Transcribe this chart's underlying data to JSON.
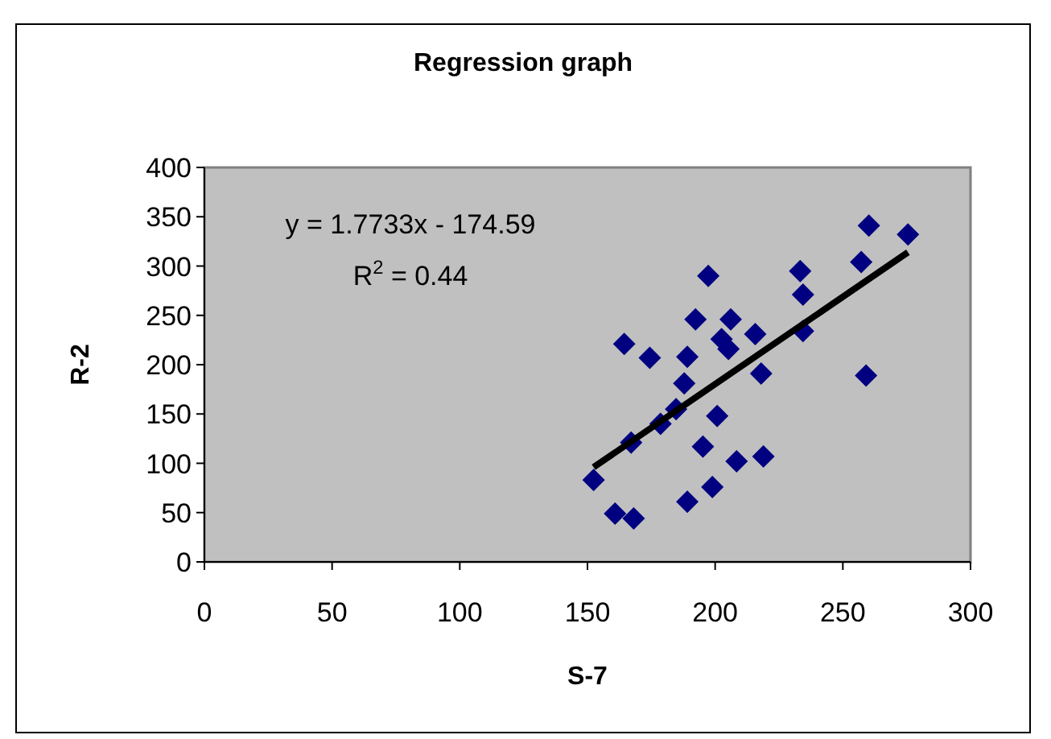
{
  "chart_data": {
    "type": "scatter",
    "title": "Regression graph",
    "xlabel": "S-7",
    "ylabel": "R-2",
    "xlim": [
      0,
      300
    ],
    "xticks": [
      0,
      50,
      100,
      150,
      200,
      250,
      300
    ],
    "ylim": [
      0,
      400
    ],
    "yticks": [
      0,
      50,
      100,
      150,
      200,
      250,
      300,
      350,
      400
    ],
    "grid": false,
    "marker": "diamond",
    "annotations": [
      "y = 1.7733x - 174.59",
      "R$^{2}$ = 0.44"
    ],
    "series": [
      {
        "color": "#000080",
        "x": [
          152.4,
          160.8,
          168.1,
          167.1,
          164.4,
          174.4,
          178.6,
          184.7,
          187.9,
          189.1,
          189.1,
          192.3,
          197.3,
          195.2,
          200.8,
          198.9,
          202.5,
          205.2,
          206.1,
          208.4,
          215.7,
          218,
          218.9,
          233.3,
          234.4,
          234.4,
          257.2,
          260.2,
          275.5,
          259.1
        ],
        "values": [
          83,
          49,
          44,
          121,
          221,
          207,
          140,
          155,
          181,
          208,
          61,
          246,
          290,
          117,
          148,
          76,
          226,
          216,
          246,
          102,
          231,
          191,
          107,
          295,
          271,
          234,
          304,
          341,
          332,
          189
        ]
      },
      {
        "type": "line",
        "color": "#000000",
        "marker": "none",
        "x": [
          152.4,
          275.5
        ],
        "values": [
          96,
          314
        ]
      }
    ]
  }
}
